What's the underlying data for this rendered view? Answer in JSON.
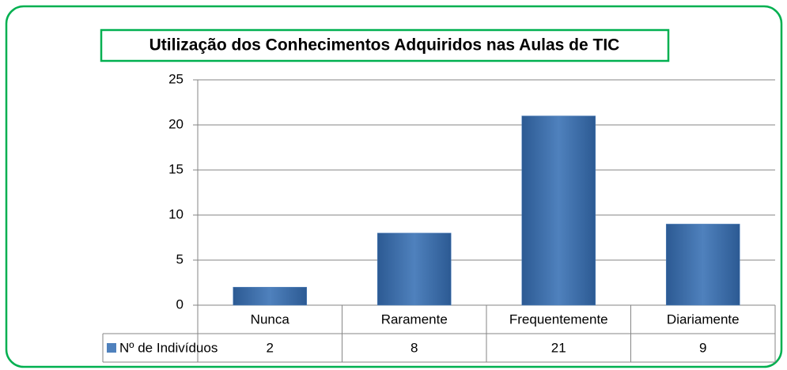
{
  "chart_data": {
    "type": "bar",
    "title": "Utilização dos Conhecimentos Adquiridos nas Aulas de TIC",
    "categories": [
      "Nunca",
      "Raramente",
      "Frequentemente",
      "Diariamente"
    ],
    "series": [
      {
        "name": "Nº de Indivíduos",
        "color": "#4f81bd",
        "values": [
          2,
          8,
          21,
          9
        ]
      }
    ],
    "ylim": [
      0,
      25
    ],
    "yticks": [
      0,
      5,
      10,
      15,
      20,
      25
    ],
    "grid": true,
    "data_table": true
  }
}
